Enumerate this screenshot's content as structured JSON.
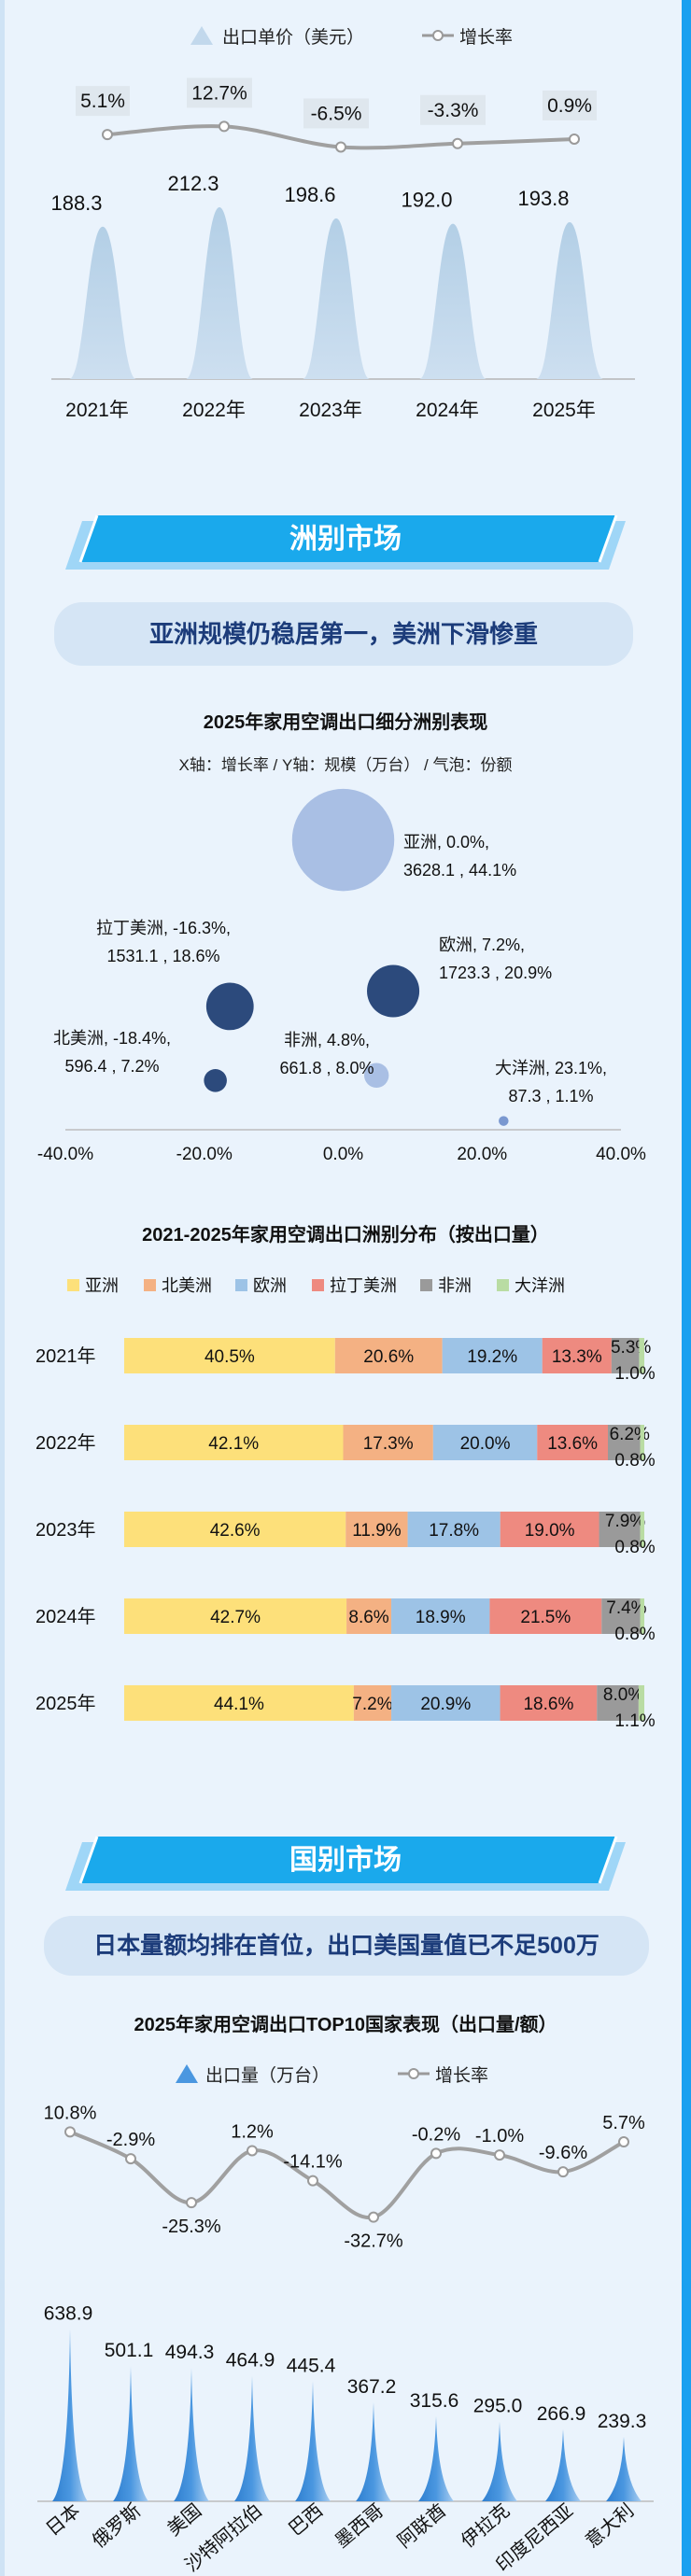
{
  "chart_data": [
    {
      "type": "area",
      "id": "unit-price",
      "title": "",
      "legend": {
        "bars": "出口单价（美元）",
        "line": "增长率"
      },
      "categories": [
        "2021年",
        "2022年",
        "2023年",
        "2024年",
        "2025年"
      ],
      "series": [
        {
          "name": "出口单价（美元）",
          "values": [
            188.3,
            212.3,
            198.6,
            192.0,
            193.8
          ],
          "labels": [
            "188.3",
            "212.3",
            "198.6",
            "192.0",
            "193.8"
          ]
        },
        {
          "name": "增长率",
          "values": [
            5.1,
            12.7,
            -6.5,
            -3.3,
            0.9
          ],
          "labels": [
            "5.1%",
            "12.7%",
            "-6.5%",
            "-3.3%",
            "0.9%"
          ]
        }
      ]
    },
    {
      "type": "scatter",
      "id": "continent-bubble",
      "title": "2025年家用空调出口细分洲别表现",
      "subtitle": "X轴：增长率 / Y轴：规模（万台） / 气泡：份额",
      "xlim": [
        -40,
        40
      ],
      "x_ticks": [
        "-40.0%",
        "-20.0%",
        "0.0%",
        "20.0%",
        "40.0%"
      ],
      "points": [
        {
          "name": "亚洲",
          "x": 0.0,
          "y": 3628.1,
          "share": 44.1,
          "label1": "亚洲, 0.0%,",
          "label2": "3628.1 , 44.1%"
        },
        {
          "name": "拉丁美洲",
          "x": -16.3,
          "y": 1531.1,
          "share": 18.6,
          "label1": "拉丁美洲, -16.3%,",
          "label2": "1531.1 , 18.6%"
        },
        {
          "name": "欧洲",
          "x": 7.2,
          "y": 1723.3,
          "share": 20.9,
          "label1": "欧洲, 7.2%,",
          "label2": "1723.3 , 20.9%"
        },
        {
          "name": "北美洲",
          "x": -18.4,
          "y": 596.4,
          "share": 7.2,
          "label1": "北美洲, -18.4%,",
          "label2": "596.4 , 7.2%"
        },
        {
          "name": "非洲",
          "x": 4.8,
          "y": 661.8,
          "share": 8.0,
          "label1": "非洲, 4.8%,",
          "label2": "661.8 , 8.0%"
        },
        {
          "name": "大洋洲",
          "x": 23.1,
          "y": 87.3,
          "share": 1.1,
          "label1": "大洋洲, 23.1%,",
          "label2": "87.3 , 1.1%"
        }
      ]
    },
    {
      "type": "bar",
      "id": "continent-stacked",
      "title": "2021-2025年家用空调出口洲别分布（按出口量）",
      "stacked": true,
      "orientation": "horizontal",
      "categories": [
        "2021年",
        "2022年",
        "2023年",
        "2024年",
        "2025年"
      ],
      "series": [
        {
          "name": "亚洲",
          "color": "#fde07a",
          "values": [
            40.5,
            42.1,
            42.6,
            42.7,
            44.1
          ]
        },
        {
          "name": "北美洲",
          "color": "#f4b183",
          "values": [
            20.6,
            17.3,
            11.9,
            8.6,
            7.2
          ]
        },
        {
          "name": "欧洲",
          "color": "#9dc3e6",
          "values": [
            19.2,
            20.0,
            17.8,
            18.9,
            20.9
          ]
        },
        {
          "name": "拉丁美洲",
          "color": "#ee8a80",
          "values": [
            13.3,
            13.6,
            19.0,
            21.5,
            18.6
          ]
        },
        {
          "name": "非洲",
          "color": "#9a9a9a",
          "values": [
            5.3,
            6.2,
            7.9,
            7.4,
            8.0
          ]
        },
        {
          "name": "大洋洲",
          "color": "#b9dca3",
          "values": [
            1.0,
            0.8,
            0.8,
            0.8,
            1.1
          ]
        }
      ]
    },
    {
      "type": "area",
      "id": "country-top10",
      "title": "2025年家用空调出口TOP10国家表现（出口量/额）",
      "legend": {
        "bars": "出口量（万台）",
        "line": "增长率"
      },
      "categories": [
        "日本",
        "俄罗斯",
        "美国",
        "沙特阿拉伯",
        "巴西",
        "墨西哥",
        "阿联酋",
        "伊拉克",
        "印度尼西亚",
        "意大利"
      ],
      "series": [
        {
          "name": "出口量（万台）",
          "values": [
            638.9,
            501.1,
            494.3,
            464.9,
            445.4,
            367.2,
            315.6,
            295.0,
            266.9,
            239.3
          ],
          "labels": [
            "638.9",
            "501.1",
            "494.3",
            "464.9",
            "445.4",
            "367.2",
            "315.6",
            "295.0",
            "266.9",
            "239.3"
          ]
        },
        {
          "name": "增长率",
          "values": [
            10.8,
            -2.9,
            -25.3,
            1.2,
            -14.1,
            -32.7,
            -0.2,
            -1.0,
            -9.6,
            5.7
          ],
          "labels": [
            "10.8%",
            "-2.9%",
            "-25.3%",
            "1.2%",
            "-14.1%",
            "-32.7%",
            "-0.2%",
            "-1.0%",
            "-9.6%",
            "5.7%"
          ]
        }
      ]
    }
  ],
  "sections": {
    "continent": {
      "title": "洲别市场",
      "subtitle": "亚洲规模仍稳居第一，美洲下滑惨重"
    },
    "country": {
      "title": "国别市场",
      "subtitle": "日本量额均排在首位，出口美国量值已不足500万"
    }
  }
}
